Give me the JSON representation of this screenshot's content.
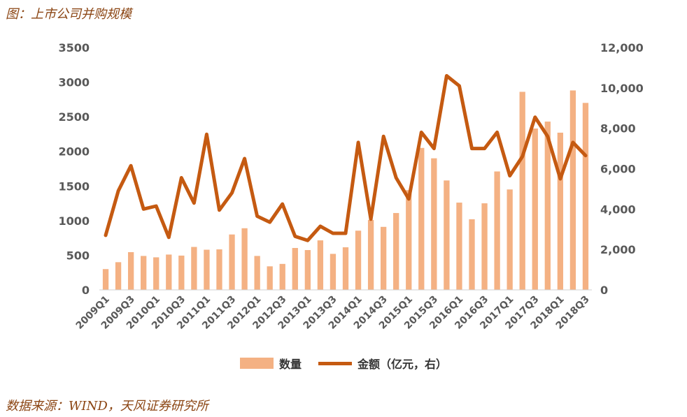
{
  "figure": {
    "title": "图：上市公司并购规模",
    "source": "数据来源：WIND，天风证券研究所"
  },
  "colors": {
    "bar": "#F4B183",
    "line": "#C55A11",
    "title_text": "#8B4513",
    "axis_text": "#595959"
  },
  "legend": {
    "bar_label": "数量",
    "line_label": "金额（亿元，右）"
  },
  "chart_data": {
    "type": "bar",
    "categories": [
      "2009Q1",
      "2009Q2",
      "2009Q3",
      "2009Q4",
      "2010Q1",
      "2010Q2",
      "2010Q3",
      "2010Q4",
      "2011Q1",
      "2011Q2",
      "2011Q3",
      "2011Q4",
      "2012Q1",
      "2012Q2",
      "2012Q3",
      "2012Q4",
      "2013Q1",
      "2013Q2",
      "2013Q3",
      "2013Q4",
      "2014Q1",
      "2014Q2",
      "2014Q3",
      "2014Q4",
      "2015Q1",
      "2015Q2",
      "2015Q3",
      "2015Q4",
      "2016Q1",
      "2016Q2",
      "2016Q3",
      "2016Q4",
      "2017Q1",
      "2017Q2",
      "2017Q3",
      "2017Q4",
      "2018Q1",
      "2018Q2",
      "2018Q3"
    ],
    "x_tick_labels": [
      "2009Q1",
      "2009Q3",
      "2010Q1",
      "2010Q3",
      "2011Q1",
      "2011Q3",
      "2012Q1",
      "2012Q3",
      "2013Q1",
      "2013Q3",
      "2014Q1",
      "2014Q3",
      "2015Q1",
      "2015Q3",
      "2016Q1",
      "2016Q3",
      "2017Q1",
      "2017Q3",
      "2018Q1",
      "2018Q3"
    ],
    "series": [
      {
        "name": "数量",
        "type": "bar",
        "axis": "left",
        "values": [
          300,
          400,
          545,
          490,
          470,
          510,
          495,
          620,
          580,
          585,
          800,
          890,
          490,
          340,
          375,
          605,
          575,
          715,
          520,
          615,
          855,
          1010,
          910,
          1110,
          1440,
          2050,
          1900,
          1580,
          1260,
          1020,
          1250,
          1710,
          1450,
          2860,
          2330,
          2430,
          2270,
          2880,
          2700
        ]
      },
      {
        "name": "金额（亿元，右）",
        "type": "line",
        "axis": "right",
        "values": [
          2700,
          4900,
          6150,
          4000,
          4150,
          2600,
          5550,
          4300,
          7700,
          3950,
          4800,
          6500,
          3650,
          3350,
          4250,
          2650,
          2450,
          3150,
          2800,
          2800,
          7300,
          3500,
          7600,
          5550,
          4500,
          7800,
          7000,
          10600,
          10100,
          7000,
          7000,
          7800,
          5650,
          6600,
          8550,
          7600,
          5500,
          7300,
          6650
        ]
      }
    ],
    "y_left": {
      "ylim": [
        0,
        3500
      ],
      "ticks": [
        "0",
        "500",
        "1000",
        "1500",
        "2000",
        "2500",
        "3000",
        "3500"
      ]
    },
    "y_right": {
      "ylim": [
        0,
        12000
      ],
      "ticks": [
        "0",
        "2,000",
        "4,000",
        "6,000",
        "8,000",
        "10,000",
        "12,000"
      ]
    },
    "grid": false,
    "legend_position": "bottom"
  }
}
